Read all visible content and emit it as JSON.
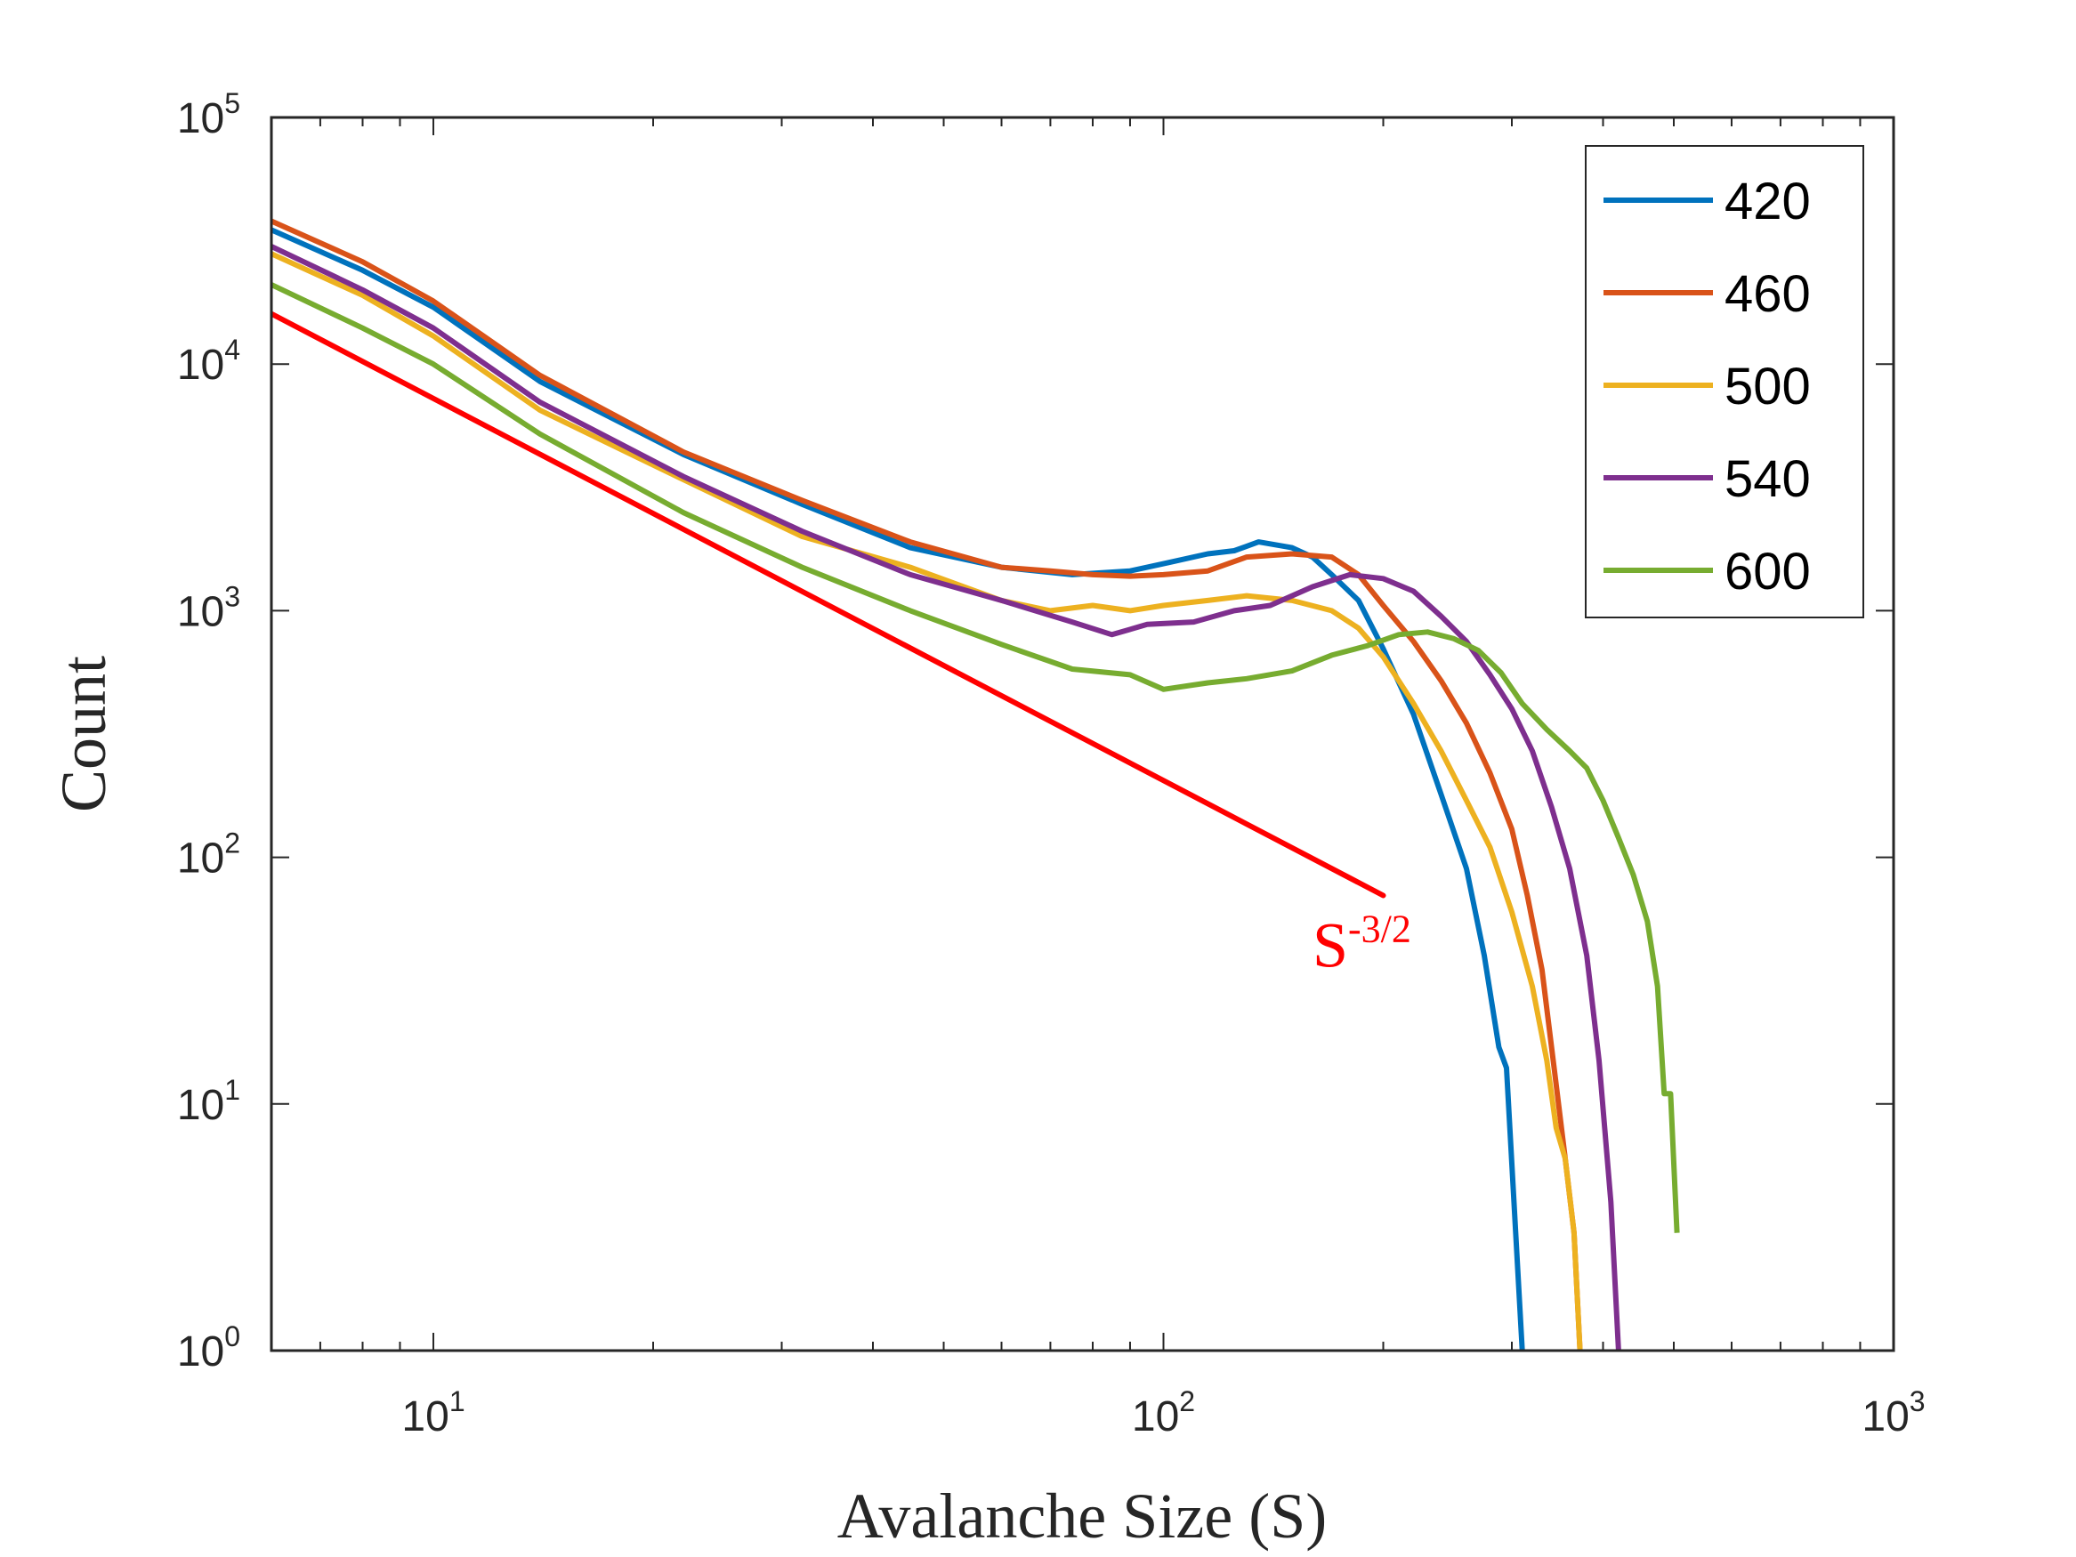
{
  "chart_data": {
    "type": "line",
    "xscale": "log",
    "yscale": "log",
    "xlim": [
      6,
      1000
    ],
    "ylim": [
      1,
      100000
    ],
    "xlabel": "Avalanche Size (S)",
    "ylabel": "Count",
    "x_ticks": [
      {
        "value": 10,
        "base": "10",
        "exp": "1"
      },
      {
        "value": 100,
        "base": "10",
        "exp": "2"
      },
      {
        "value": 1000,
        "base": "10",
        "exp": "3"
      }
    ],
    "y_ticks": [
      {
        "value": 1,
        "base": "10",
        "exp": "0"
      },
      {
        "value": 10,
        "base": "10",
        "exp": "1"
      },
      {
        "value": 100,
        "base": "10",
        "exp": "2"
      },
      {
        "value": 1000,
        "base": "10",
        "exp": "3"
      },
      {
        "value": 10000,
        "base": "10",
        "exp": "4"
      },
      {
        "value": 100000,
        "base": "10",
        "exp": "5"
      }
    ],
    "legend_position": "top-right",
    "series": [
      {
        "name": "420",
        "color": "#0072BD",
        "points": [
          [
            6,
            35000
          ],
          [
            8,
            24000
          ],
          [
            10,
            17000
          ],
          [
            14,
            8500
          ],
          [
            22,
            4300
          ],
          [
            32,
            2700
          ],
          [
            45,
            1800
          ],
          [
            60,
            1500
          ],
          [
            75,
            1400
          ],
          [
            90,
            1450
          ],
          [
            100,
            1550
          ],
          [
            115,
            1700
          ],
          [
            125,
            1750
          ],
          [
            135,
            1900
          ],
          [
            150,
            1800
          ],
          [
            160,
            1650
          ],
          [
            170,
            1400
          ],
          [
            185,
            1100
          ],
          [
            200,
            700
          ],
          [
            220,
            380
          ],
          [
            240,
            180
          ],
          [
            260,
            90
          ],
          [
            275,
            40
          ],
          [
            288,
            17
          ],
          [
            295,
            14
          ],
          [
            302,
            4
          ],
          [
            310,
            1
          ]
        ]
      },
      {
        "name": "460",
        "color": "#D95319",
        "points": [
          [
            6,
            38000
          ],
          [
            8,
            26000
          ],
          [
            10,
            18000
          ],
          [
            14,
            9000
          ],
          [
            22,
            4400
          ],
          [
            32,
            2800
          ],
          [
            45,
            1900
          ],
          [
            60,
            1500
          ],
          [
            70,
            1450
          ],
          [
            80,
            1400
          ],
          [
            90,
            1380
          ],
          [
            100,
            1400
          ],
          [
            115,
            1450
          ],
          [
            130,
            1650
          ],
          [
            150,
            1700
          ],
          [
            170,
            1650
          ],
          [
            185,
            1400
          ],
          [
            200,
            1050
          ],
          [
            220,
            750
          ],
          [
            240,
            520
          ],
          [
            260,
            350
          ],
          [
            280,
            220
          ],
          [
            300,
            130
          ],
          [
            315,
            70
          ],
          [
            330,
            35
          ],
          [
            345,
            12
          ],
          [
            355,
            6
          ],
          [
            365,
            3
          ],
          [
            372,
            1
          ]
        ]
      },
      {
        "name": "500",
        "color": "#EDB120",
        "points": [
          [
            6,
            28000
          ],
          [
            8,
            19000
          ],
          [
            10,
            13000
          ],
          [
            14,
            6500
          ],
          [
            22,
            3400
          ],
          [
            32,
            2000
          ],
          [
            45,
            1500
          ],
          [
            60,
            1100
          ],
          [
            70,
            1000
          ],
          [
            80,
            1050
          ],
          [
            90,
            1000
          ],
          [
            100,
            1050
          ],
          [
            115,
            1100
          ],
          [
            130,
            1150
          ],
          [
            150,
            1100
          ],
          [
            170,
            1000
          ],
          [
            185,
            850
          ],
          [
            200,
            650
          ],
          [
            220,
            420
          ],
          [
            240,
            270
          ],
          [
            260,
            170
          ],
          [
            280,
            110
          ],
          [
            300,
            60
          ],
          [
            320,
            30
          ],
          [
            335,
            15
          ],
          [
            345,
            8
          ],
          [
            355,
            6
          ],
          [
            365,
            3
          ],
          [
            372,
            1
          ]
        ]
      },
      {
        "name": "540",
        "color": "#7E2F8E",
        "points": [
          [
            6,
            30000
          ],
          [
            8,
            20000
          ],
          [
            10,
            14000
          ],
          [
            14,
            7000
          ],
          [
            22,
            3500
          ],
          [
            32,
            2100
          ],
          [
            45,
            1400
          ],
          [
            60,
            1100
          ],
          [
            75,
            900
          ],
          [
            85,
            800
          ],
          [
            95,
            880
          ],
          [
            110,
            900
          ],
          [
            125,
            1000
          ],
          [
            140,
            1050
          ],
          [
            160,
            1250
          ],
          [
            180,
            1400
          ],
          [
            200,
            1350
          ],
          [
            220,
            1200
          ],
          [
            240,
            950
          ],
          [
            260,
            750
          ],
          [
            280,
            550
          ],
          [
            300,
            400
          ],
          [
            320,
            270
          ],
          [
            340,
            160
          ],
          [
            360,
            90
          ],
          [
            380,
            40
          ],
          [
            395,
            15
          ],
          [
            410,
            4
          ],
          [
            420,
            1
          ]
        ]
      },
      {
        "name": "600",
        "color": "#77AC30",
        "points": [
          [
            6,
            21000
          ],
          [
            8,
            14000
          ],
          [
            10,
            10000
          ],
          [
            14,
            5200
          ],
          [
            22,
            2500
          ],
          [
            32,
            1500
          ],
          [
            45,
            1000
          ],
          [
            60,
            730
          ],
          [
            75,
            580
          ],
          [
            90,
            550
          ],
          [
            100,
            480
          ],
          [
            115,
            510
          ],
          [
            130,
            530
          ],
          [
            150,
            570
          ],
          [
            170,
            660
          ],
          [
            190,
            720
          ],
          [
            210,
            800
          ],
          [
            230,
            820
          ],
          [
            250,
            770
          ],
          [
            270,
            690
          ],
          [
            290,
            560
          ],
          [
            310,
            420
          ],
          [
            335,
            330
          ],
          [
            360,
            270
          ],
          [
            380,
            230
          ],
          [
            400,
            170
          ],
          [
            420,
            120
          ],
          [
            440,
            85
          ],
          [
            460,
            55
          ],
          [
            475,
            30
          ],
          [
            485,
            11
          ],
          [
            495,
            11
          ],
          [
            505,
            3
          ]
        ]
      }
    ],
    "reference_line": {
      "name": "power-law guide",
      "color": "#FF0000",
      "points": [
        [
          6,
          16000
        ],
        [
          200,
          70
        ]
      ],
      "label_base": "S",
      "label_exp": "-3/2",
      "label_anchor": [
        160,
        36
      ]
    }
  }
}
